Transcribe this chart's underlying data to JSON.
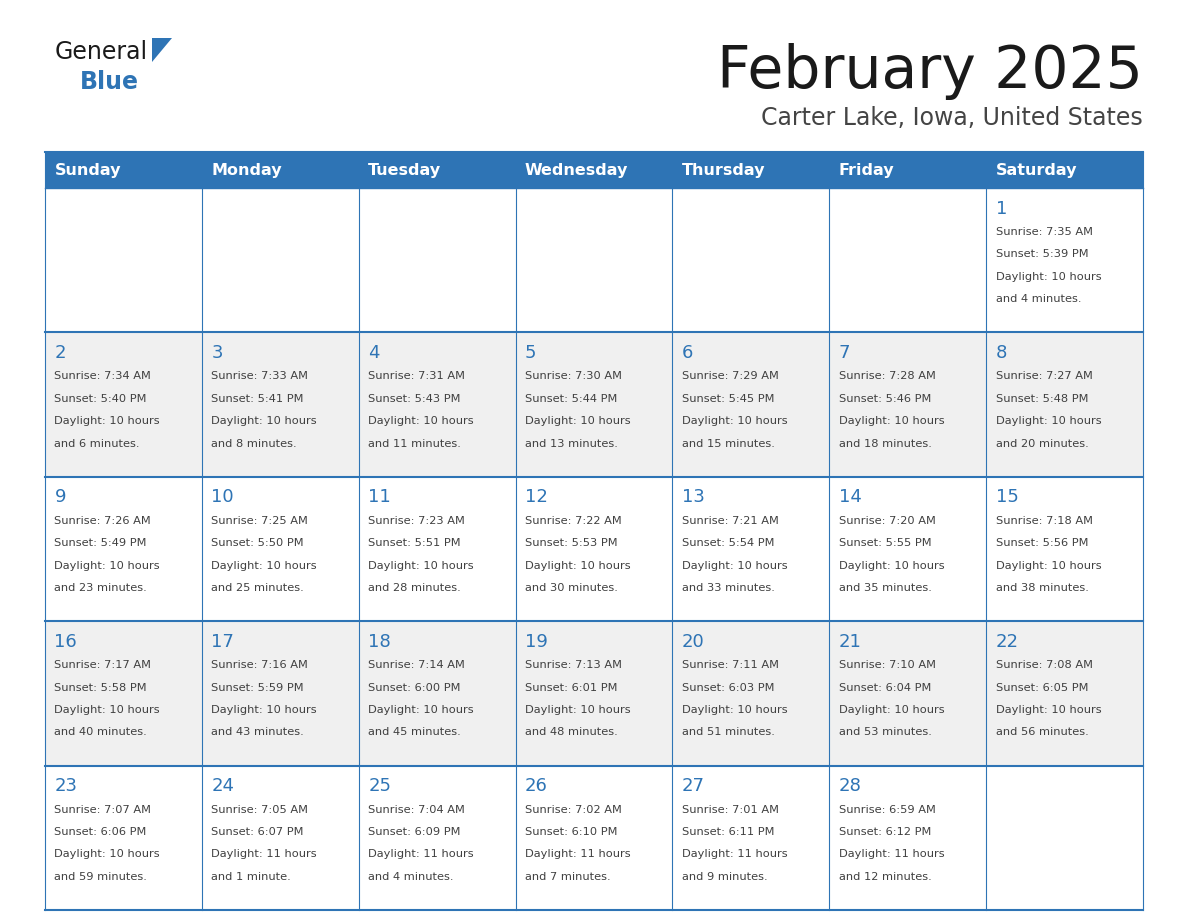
{
  "title": "February 2025",
  "subtitle": "Carter Lake, Iowa, United States",
  "header_bg": "#2e74b5",
  "header_text_color": "#ffffff",
  "cell_bg_white": "#ffffff",
  "cell_bg_gray": "#f0f0f0",
  "day_headers": [
    "Sunday",
    "Monday",
    "Tuesday",
    "Wednesday",
    "Thursday",
    "Friday",
    "Saturday"
  ],
  "text_color": "#404040",
  "number_color": "#2e74b5",
  "border_color": "#2e74b5",
  "logo_general_color": "#1a1a1a",
  "logo_blue_color": "#2e74b5",
  "title_color": "#1a1a1a",
  "subtitle_color": "#444444",
  "calendar": [
    [
      null,
      null,
      null,
      null,
      null,
      null,
      {
        "day": "1",
        "sunrise": "7:35 AM",
        "sunset": "5:39 PM",
        "daylight_line1": "Daylight: 10 hours",
        "daylight_line2": "and 4 minutes."
      }
    ],
    [
      {
        "day": "2",
        "sunrise": "7:34 AM",
        "sunset": "5:40 PM",
        "daylight_line1": "Daylight: 10 hours",
        "daylight_line2": "and 6 minutes."
      },
      {
        "day": "3",
        "sunrise": "7:33 AM",
        "sunset": "5:41 PM",
        "daylight_line1": "Daylight: 10 hours",
        "daylight_line2": "and 8 minutes."
      },
      {
        "day": "4",
        "sunrise": "7:31 AM",
        "sunset": "5:43 PM",
        "daylight_line1": "Daylight: 10 hours",
        "daylight_line2": "and 11 minutes."
      },
      {
        "day": "5",
        "sunrise": "7:30 AM",
        "sunset": "5:44 PM",
        "daylight_line1": "Daylight: 10 hours",
        "daylight_line2": "and 13 minutes."
      },
      {
        "day": "6",
        "sunrise": "7:29 AM",
        "sunset": "5:45 PM",
        "daylight_line1": "Daylight: 10 hours",
        "daylight_line2": "and 15 minutes."
      },
      {
        "day": "7",
        "sunrise": "7:28 AM",
        "sunset": "5:46 PM",
        "daylight_line1": "Daylight: 10 hours",
        "daylight_line2": "and 18 minutes."
      },
      {
        "day": "8",
        "sunrise": "7:27 AM",
        "sunset": "5:48 PM",
        "daylight_line1": "Daylight: 10 hours",
        "daylight_line2": "and 20 minutes."
      }
    ],
    [
      {
        "day": "9",
        "sunrise": "7:26 AM",
        "sunset": "5:49 PM",
        "daylight_line1": "Daylight: 10 hours",
        "daylight_line2": "and 23 minutes."
      },
      {
        "day": "10",
        "sunrise": "7:25 AM",
        "sunset": "5:50 PM",
        "daylight_line1": "Daylight: 10 hours",
        "daylight_line2": "and 25 minutes."
      },
      {
        "day": "11",
        "sunrise": "7:23 AM",
        "sunset": "5:51 PM",
        "daylight_line1": "Daylight: 10 hours",
        "daylight_line2": "and 28 minutes."
      },
      {
        "day": "12",
        "sunrise": "7:22 AM",
        "sunset": "5:53 PM",
        "daylight_line1": "Daylight: 10 hours",
        "daylight_line2": "and 30 minutes."
      },
      {
        "day": "13",
        "sunrise": "7:21 AM",
        "sunset": "5:54 PM",
        "daylight_line1": "Daylight: 10 hours",
        "daylight_line2": "and 33 minutes."
      },
      {
        "day": "14",
        "sunrise": "7:20 AM",
        "sunset": "5:55 PM",
        "daylight_line1": "Daylight: 10 hours",
        "daylight_line2": "and 35 minutes."
      },
      {
        "day": "15",
        "sunrise": "7:18 AM",
        "sunset": "5:56 PM",
        "daylight_line1": "Daylight: 10 hours",
        "daylight_line2": "and 38 minutes."
      }
    ],
    [
      {
        "day": "16",
        "sunrise": "7:17 AM",
        "sunset": "5:58 PM",
        "daylight_line1": "Daylight: 10 hours",
        "daylight_line2": "and 40 minutes."
      },
      {
        "day": "17",
        "sunrise": "7:16 AM",
        "sunset": "5:59 PM",
        "daylight_line1": "Daylight: 10 hours",
        "daylight_line2": "and 43 minutes."
      },
      {
        "day": "18",
        "sunrise": "7:14 AM",
        "sunset": "6:00 PM",
        "daylight_line1": "Daylight: 10 hours",
        "daylight_line2": "and 45 minutes."
      },
      {
        "day": "19",
        "sunrise": "7:13 AM",
        "sunset": "6:01 PM",
        "daylight_line1": "Daylight: 10 hours",
        "daylight_line2": "and 48 minutes."
      },
      {
        "day": "20",
        "sunrise": "7:11 AM",
        "sunset": "6:03 PM",
        "daylight_line1": "Daylight: 10 hours",
        "daylight_line2": "and 51 minutes."
      },
      {
        "day": "21",
        "sunrise": "7:10 AM",
        "sunset": "6:04 PM",
        "daylight_line1": "Daylight: 10 hours",
        "daylight_line2": "and 53 minutes."
      },
      {
        "day": "22",
        "sunrise": "7:08 AM",
        "sunset": "6:05 PM",
        "daylight_line1": "Daylight: 10 hours",
        "daylight_line2": "and 56 minutes."
      }
    ],
    [
      {
        "day": "23",
        "sunrise": "7:07 AM",
        "sunset": "6:06 PM",
        "daylight_line1": "Daylight: 10 hours",
        "daylight_line2": "and 59 minutes."
      },
      {
        "day": "24",
        "sunrise": "7:05 AM",
        "sunset": "6:07 PM",
        "daylight_line1": "Daylight: 11 hours",
        "daylight_line2": "and 1 minute."
      },
      {
        "day": "25",
        "sunrise": "7:04 AM",
        "sunset": "6:09 PM",
        "daylight_line1": "Daylight: 11 hours",
        "daylight_line2": "and 4 minutes."
      },
      {
        "day": "26",
        "sunrise": "7:02 AM",
        "sunset": "6:10 PM",
        "daylight_line1": "Daylight: 11 hours",
        "daylight_line2": "and 7 minutes."
      },
      {
        "day": "27",
        "sunrise": "7:01 AM",
        "sunset": "6:11 PM",
        "daylight_line1": "Daylight: 11 hours",
        "daylight_line2": "and 9 minutes."
      },
      {
        "day": "28",
        "sunrise": "6:59 AM",
        "sunset": "6:12 PM",
        "daylight_line1": "Daylight: 11 hours",
        "daylight_line2": "and 12 minutes."
      },
      null
    ]
  ]
}
